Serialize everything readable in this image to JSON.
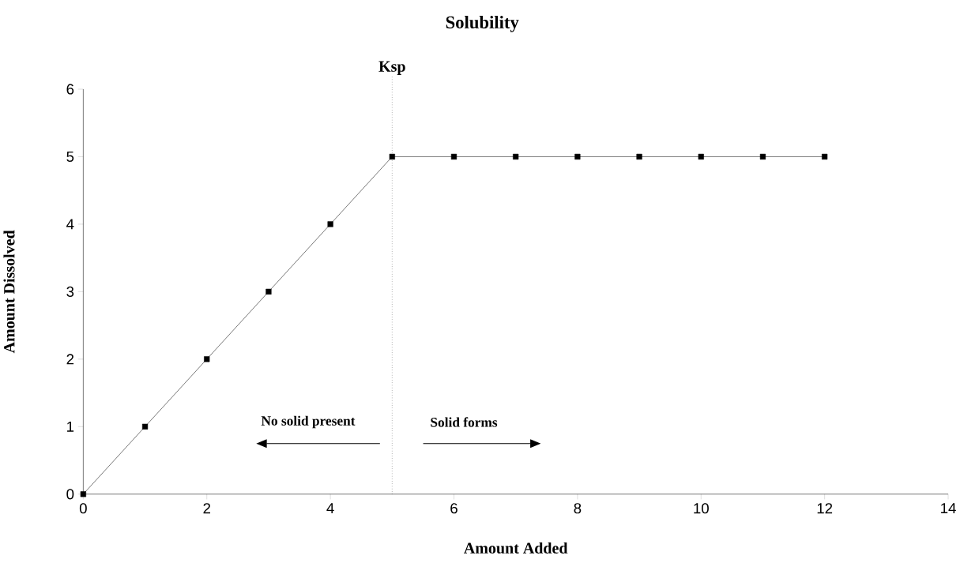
{
  "chart_data": {
    "type": "line",
    "title": "Solubility",
    "xlabel": "Amount Added",
    "ylabel": "Amount Dissolved",
    "x": [
      0,
      1,
      2,
      3,
      4,
      5,
      6,
      7,
      8,
      9,
      10,
      11,
      12
    ],
    "series": [
      {
        "color": "#000000",
        "values": [
          0,
          1,
          2,
          3,
          4,
          5,
          5,
          5,
          5,
          5,
          5,
          5,
          5
        ]
      }
    ],
    "xlim": [
      0,
      14
    ],
    "xticks": [
      0,
      2,
      4,
      6,
      8,
      10,
      12,
      14
    ],
    "ylim": [
      0,
      6
    ],
    "yticks": [
      0,
      1,
      2,
      3,
      4,
      5,
      6
    ],
    "ref_lines": [
      {
        "axis": "x",
        "value": 5,
        "label": "Ksp",
        "color": "#000000",
        "line_style": "dotted"
      }
    ],
    "annotations": [
      "No solid present",
      "Solid forms"
    ],
    "marker": "square",
    "line_style": "solid",
    "grid": false,
    "legend": false
  }
}
